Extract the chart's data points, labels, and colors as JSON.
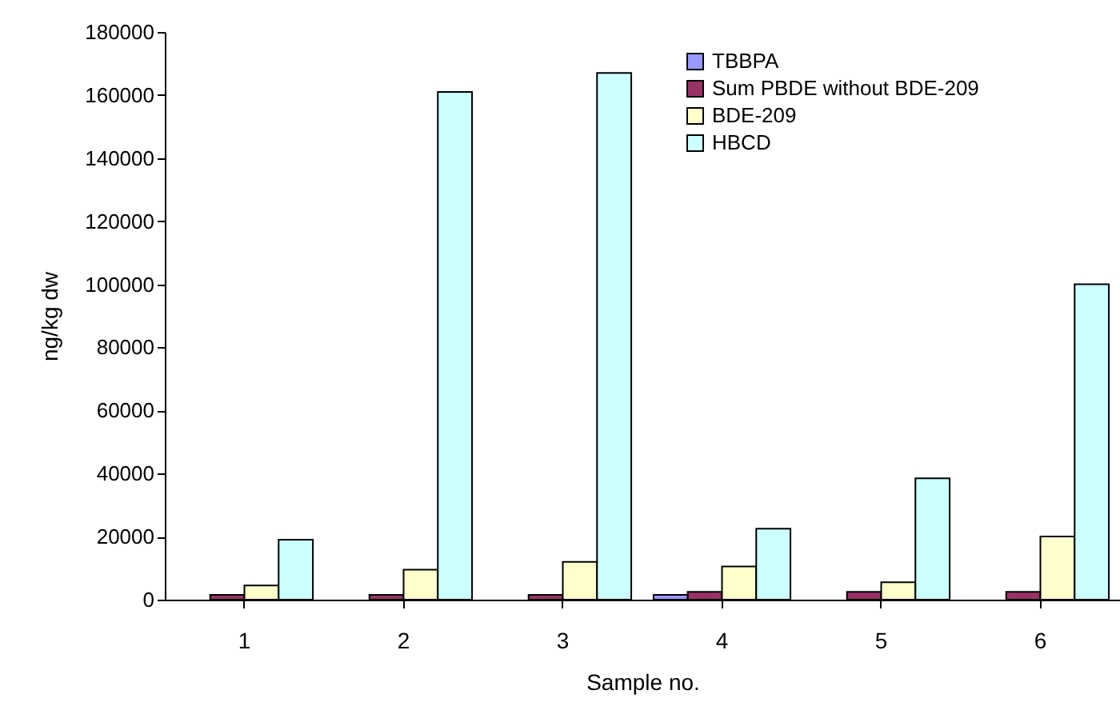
{
  "chart_data": {
    "type": "bar",
    "xlabel": "Sample no.",
    "ylabel": "ng/kg dw",
    "categories": [
      "1",
      "2",
      "3",
      "4",
      "5",
      "6"
    ],
    "series": [
      {
        "name": "TBBPA",
        "color": "#9999ff",
        "values": [
          null,
          null,
          null,
          1500,
          null,
          null
        ]
      },
      {
        "name": "Sum PBDE  without BDE-209",
        "color": "#993366",
        "values": [
          1500,
          1500,
          1500,
          2500,
          2500,
          2500
        ]
      },
      {
        "name": "BDE-209",
        "color": "#ffffcc",
        "values": [
          4500,
          9500,
          12000,
          10500,
          5500,
          20000
        ]
      },
      {
        "name": "HBCD",
        "color": "#ccffff",
        "values": [
          19000,
          161000,
          167000,
          22500,
          38500,
          100000
        ]
      }
    ],
    "ylim": [
      0,
      180000
    ],
    "yticks": [
      0,
      20000,
      40000,
      60000,
      80000,
      100000,
      120000,
      140000,
      160000,
      180000
    ],
    "grid": false,
    "legend": "top right"
  }
}
